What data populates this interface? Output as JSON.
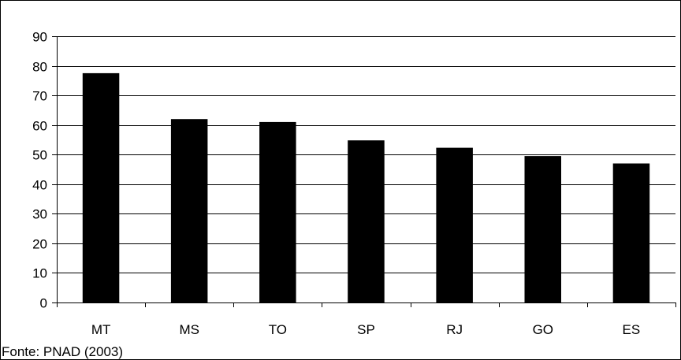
{
  "chart_data": {
    "type": "bar",
    "categories": [
      "MT",
      "MS",
      "TO",
      "SP",
      "RJ",
      "GO",
      "ES"
    ],
    "values": [
      77.5,
      62,
      61,
      54.8,
      52.3,
      49.5,
      47
    ],
    "title": "",
    "xlabel": "",
    "ylabel": "",
    "ylim": [
      0,
      90
    ],
    "yticks": [
      0,
      10,
      20,
      30,
      40,
      50,
      60,
      70,
      80,
      90
    ],
    "grid": true,
    "legend": "none",
    "bar_color": "#000000",
    "grid_color": "#000000"
  },
  "source_note": "Fonte: PNAD (2003)"
}
